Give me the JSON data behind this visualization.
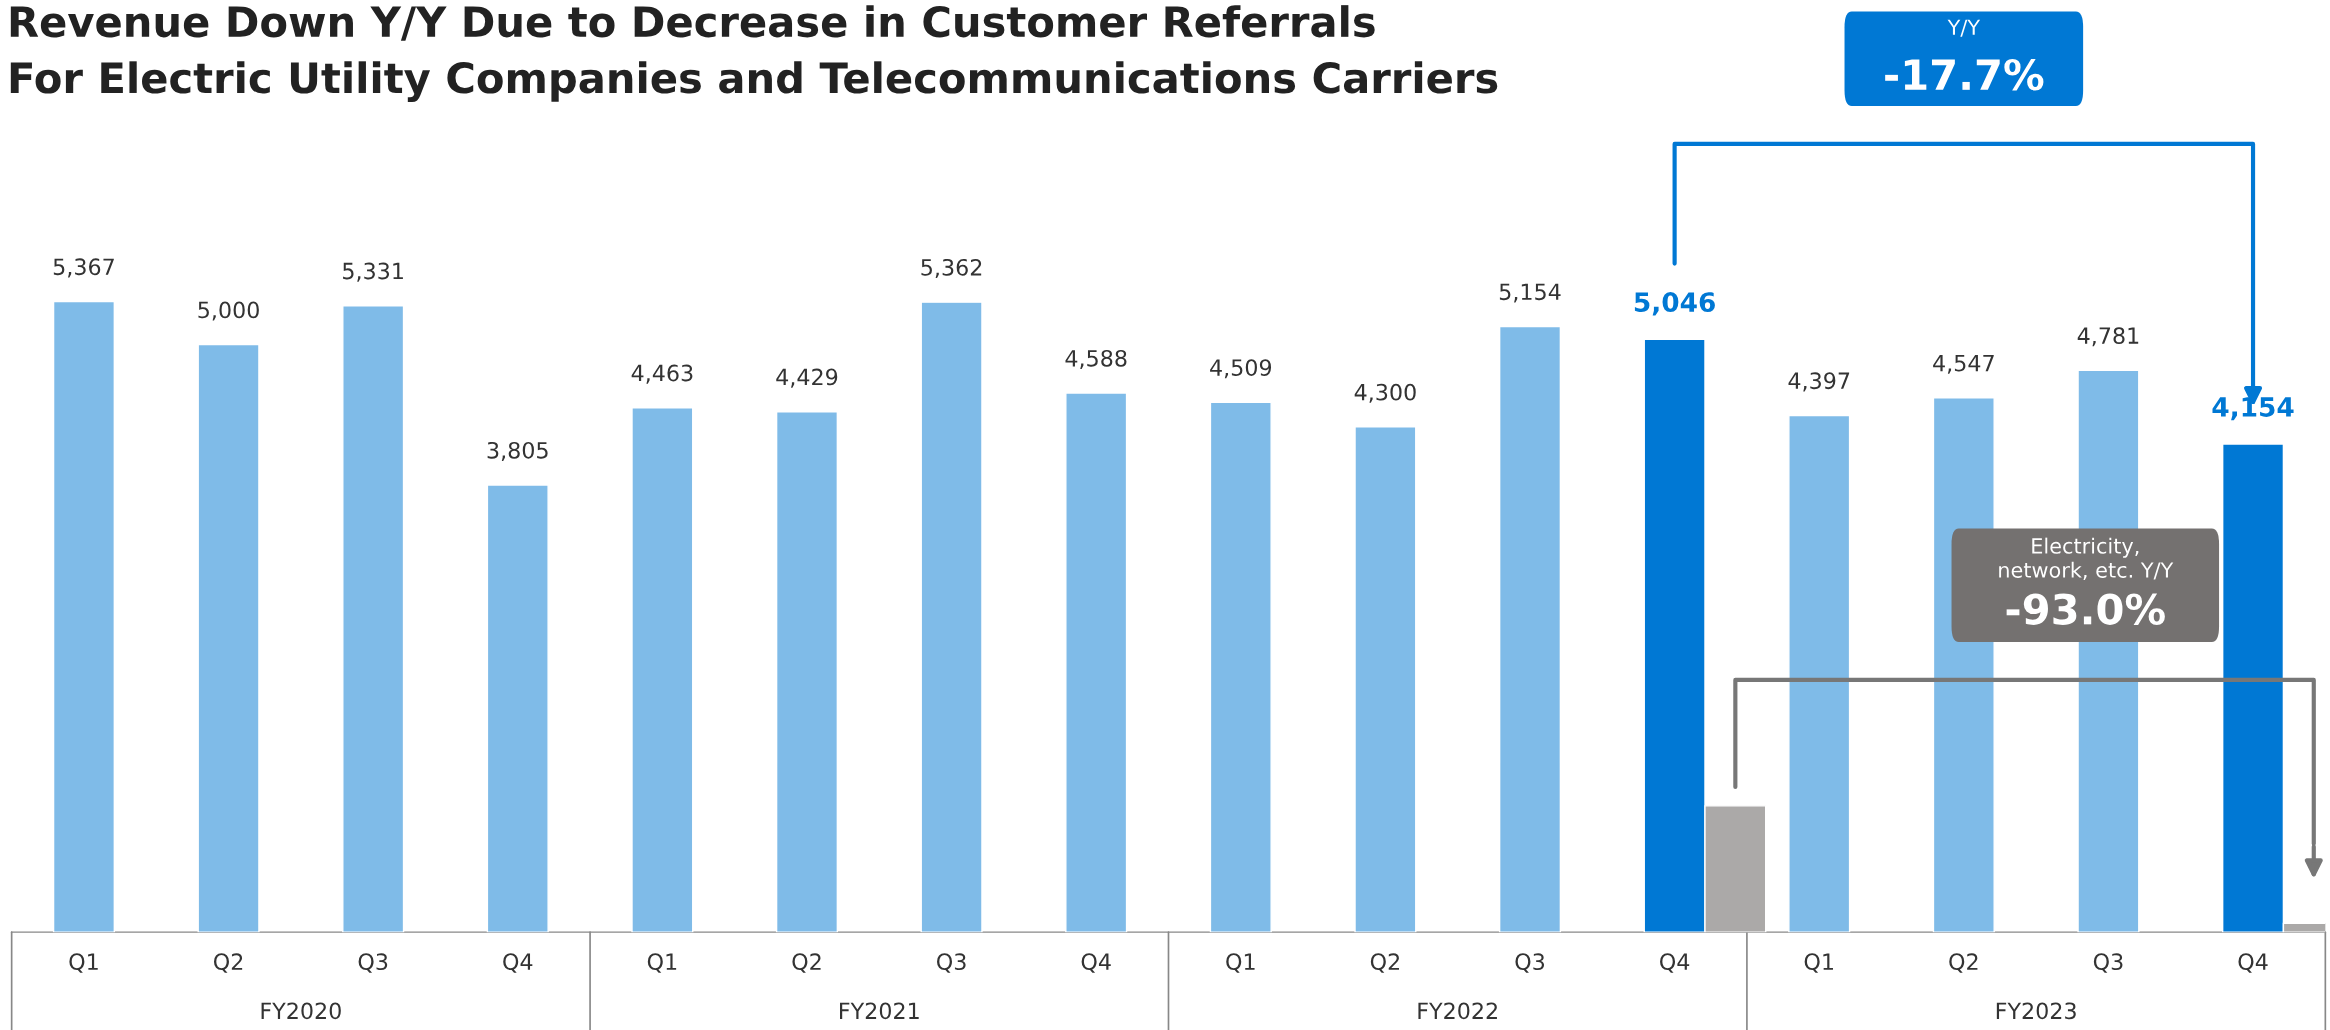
{
  "chart_data": {
    "type": "bar",
    "title": "Revenue Down Y/Y Due to Decrease in Customer Referrals\nFor Electric Utility Companies and Telecommunications Carriers",
    "categories": [
      "Q1",
      "Q2",
      "Q3",
      "Q4",
      "Q1",
      "Q2",
      "Q3",
      "Q4",
      "Q1",
      "Q2",
      "Q3",
      "Q4",
      "Q1",
      "Q2",
      "Q3",
      "Q4"
    ],
    "series": [
      {
        "values": [
          5367,
          5000,
          5331,
          3805,
          4463,
          4429,
          5362,
          4588,
          4509,
          4300,
          5154,
          5046,
          4397,
          4547,
          4781,
          4154
        ],
        "colors": [
          "#7fbbe8",
          "#7fbbe8",
          "#7fbbe8",
          "#7fbbe8",
          "#7fbbe8",
          "#7fbbe8",
          "#7fbbe8",
          "#7fbbe8",
          "#7fbbe8",
          "#7fbbe8",
          "#7fbbe8",
          "#0078d4",
          "#7fbbe8",
          "#7fbbe8",
          "#7fbbe8",
          "#0078d4"
        ],
        "value_labels": [
          "5,367",
          "5,000",
          "5,331",
          "3,805",
          "4,463",
          "4,429",
          "5,362",
          "4,588",
          "4,509",
          "4,300",
          "5,154",
          "5,046",
          "4,397",
          "4,547",
          "4,781",
          "4,154"
        ]
      },
      {
        "color": "#aba9a8",
        "values": [
          null,
          null,
          null,
          null,
          null,
          null,
          null,
          null,
          null,
          null,
          null,
          1075,
          null,
          null,
          null,
          75
        ]
      }
    ],
    "annotations": [
      "FY2020",
      "FY2021",
      "FY2022",
      "FY2023",
      "Y/Y",
      "-17.7%",
      "Electricity,\nnetwork, etc. Y/Y",
      "-93.0%"
    ],
    "legend": false
  }
}
